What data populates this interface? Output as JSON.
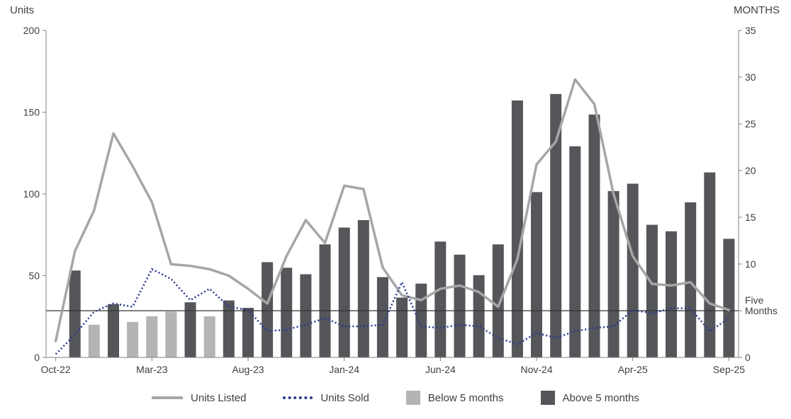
{
  "page": {
    "background": "#ffffff"
  },
  "chart_data": {
    "type": "combo-bar-line",
    "title": "",
    "x": {
      "months": [
        "Oct-22",
        "Nov-22",
        "Dec-22",
        "Jan-23",
        "Feb-23",
        "Mar-23",
        "Apr-23",
        "May-23",
        "Jun-23",
        "Jul-23",
        "Aug-23",
        "Sep-23",
        "Oct-23",
        "Nov-23",
        "Dec-23",
        "Jan-24",
        "Feb-24",
        "Mar-24",
        "Apr-24",
        "May-24",
        "Jun-24",
        "Jul-24",
        "Aug-24",
        "Sep-24",
        "Oct-24",
        "Nov-24",
        "Dec-24",
        "Jan-25",
        "Feb-25",
        "Mar-25",
        "Apr-25",
        "May-25",
        "Jun-25",
        "Jul-25",
        "Aug-25",
        "Sep-25"
      ],
      "tick_indices": [
        0,
        5,
        10,
        15,
        20,
        25,
        30,
        35
      ],
      "tick_labels": [
        "Oct-22",
        "Mar-23",
        "Aug-23",
        "Jan-24",
        "Jun-24",
        "Nov-24",
        "Apr-25",
        "Sep-25"
      ]
    },
    "left_axis": {
      "label": "Units",
      "min": 0,
      "max": 200,
      "ticks": [
        0,
        50,
        100,
        150,
        200
      ]
    },
    "right_axis": {
      "label": "MONTHS",
      "min": 0,
      "max": 35,
      "tick_marks": [
        0,
        5,
        10,
        15,
        20,
        25,
        30,
        35
      ],
      "labeled_ticks": [
        0,
        10,
        15,
        20,
        25,
        30,
        35
      ]
    },
    "reference_line": {
      "axis": "right",
      "value": 5,
      "label": "Five Months",
      "label_lines": [
        "Five",
        "Months"
      ],
      "color": "#333333"
    },
    "series": {
      "units_listed": {
        "label": "Units Listed",
        "type": "line",
        "style": "solid",
        "axis": "left",
        "color": "#a6a6a6",
        "values": [
          10,
          65,
          90,
          137,
          117,
          95,
          57,
          56,
          54,
          50,
          42,
          33,
          62,
          84,
          70,
          105,
          103,
          55,
          38,
          35,
          42,
          44,
          40,
          31,
          60,
          118,
          132,
          170,
          155,
          100,
          62,
          45,
          44,
          46,
          33,
          29
        ]
      },
      "units_sold": {
        "label": "Units Sold",
        "type": "line",
        "style": "dotted",
        "axis": "left",
        "color": "#2b3990",
        "values": [
          2,
          14,
          28,
          33,
          31,
          54,
          48,
          35,
          42,
          31,
          29,
          16,
          17,
          20,
          24,
          19,
          19,
          20,
          46,
          19,
          18,
          20,
          19,
          12,
          8,
          15,
          12,
          16,
          18,
          19,
          29,
          27,
          30,
          30,
          16,
          24
        ]
      },
      "inventory_months": {
        "type": "bar",
        "axis": "right",
        "threshold": 5,
        "below_label": "Below 5 months",
        "below_color": "#b3b4b6",
        "above_label": "Above 5 months",
        "above_color": "#54565a",
        "values": [
          null,
          9.3,
          3.5,
          5.7,
          3.8,
          4.4,
          4.9,
          5.9,
          4.4,
          6.1,
          5.3,
          10.2,
          9.6,
          8.9,
          12.1,
          13.9,
          14.7,
          8.6,
          6.4,
          7.9,
          12.4,
          11.0,
          8.8,
          12.1,
          27.5,
          17.7,
          28.2,
          22.6,
          26.0,
          17.8,
          18.6,
          14.2,
          13.5,
          16.6,
          19.8,
          12.7
        ]
      }
    },
    "legend_position": "bottom",
    "grid": "off",
    "styles": {
      "text_color": "#404040",
      "axis_color": "#808080"
    }
  }
}
